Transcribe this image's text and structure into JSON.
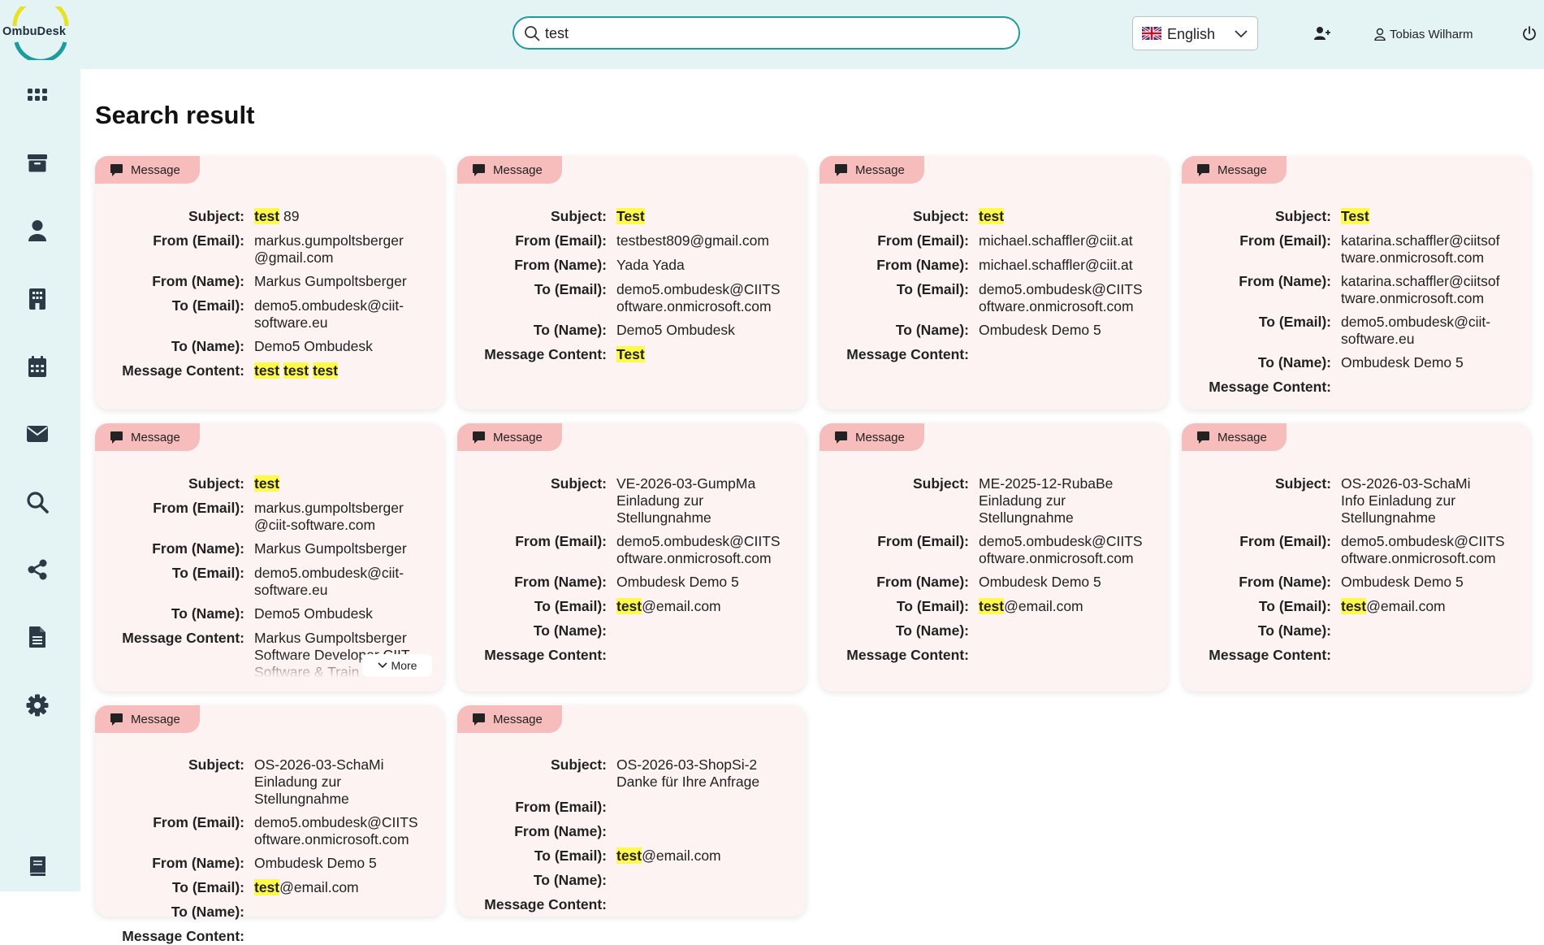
{
  "brand": {
    "name": "OmbuDesk"
  },
  "search": {
    "value": "test",
    "placeholder": ""
  },
  "language": {
    "selected": "English"
  },
  "user": {
    "name": "Tobias Wilharm"
  },
  "page": {
    "title": "Search result"
  },
  "nav": [
    {
      "name": "dashboard-grid-icon"
    },
    {
      "name": "archive-box-icon"
    },
    {
      "name": "person-icon"
    },
    {
      "name": "building-icon"
    },
    {
      "name": "calendar-icon"
    },
    {
      "name": "envelope-icon"
    },
    {
      "name": "search-icon"
    },
    {
      "name": "share-icon"
    },
    {
      "name": "document-icon"
    },
    {
      "name": "gear-icon"
    },
    {
      "name": "book-icon"
    }
  ],
  "field_labels": {
    "subject": "Subject:",
    "from_email": "From (Email):",
    "from_name": "From (Name):",
    "to_email": "To (Email):",
    "to_name": "To (Name):",
    "content": "Message Content:"
  },
  "results": [
    {
      "type": "Message",
      "subject": [
        {
          "t": "test",
          "h": true
        },
        {
          "t": " 89"
        }
      ],
      "from_email": [
        {
          "t": "markus.gumpoltsberger\n@gmail.com"
        }
      ],
      "from_name": [
        {
          "t": "Markus Gumpoltsberger"
        }
      ],
      "to_email": [
        {
          "t": "demo5.ombudesk@ciit-\nsoftware.eu"
        }
      ],
      "to_name": [
        {
          "t": "Demo5 Ombudesk"
        }
      ],
      "content": [
        {
          "t": "test",
          "h": true
        },
        {
          "t": " "
        },
        {
          "t": "test",
          "h": true
        },
        {
          "t": " "
        },
        {
          "t": "test",
          "h": true
        }
      ]
    },
    {
      "type": "Message",
      "subject": [
        {
          "t": "Test",
          "h": true
        }
      ],
      "from_email": [
        {
          "t": "testbest809@gmail.com"
        }
      ],
      "from_name": [
        {
          "t": "Yada Yada"
        }
      ],
      "to_email": [
        {
          "t": "demo5.ombudesk@CIITS\noftware.onmicrosoft.com"
        }
      ],
      "to_name": [
        {
          "t": "Demo5 Ombudesk"
        }
      ],
      "content": [
        {
          "t": "Test",
          "h": true
        }
      ]
    },
    {
      "type": "Message",
      "subject": [
        {
          "t": "test",
          "h": true
        }
      ],
      "from_email": [
        {
          "t": "michael.schaffler@ciit.at"
        }
      ],
      "from_name": [
        {
          "t": "michael.schaffler@ciit.at"
        }
      ],
      "to_email": [
        {
          "t": "demo5.ombudesk@CIITS\noftware.onmicrosoft.com"
        }
      ],
      "to_name": [
        {
          "t": "Ombudesk Demo 5"
        }
      ],
      "content": []
    },
    {
      "type": "Message",
      "subject": [
        {
          "t": "Test",
          "h": true
        }
      ],
      "from_email": [
        {
          "t": "katarina.schaffler@ciitsof\ntware.onmicrosoft.com"
        }
      ],
      "from_name": [
        {
          "t": "katarina.schaffler@ciitsof\ntware.onmicrosoft.com"
        }
      ],
      "to_email": [
        {
          "t": "demo5.ombudesk@ciit-\nsoftware.eu"
        }
      ],
      "to_name": [
        {
          "t": "Ombudesk Demo 5"
        }
      ],
      "content": []
    },
    {
      "type": "Message",
      "subject": [
        {
          "t": "test",
          "h": true
        }
      ],
      "from_email": [
        {
          "t": "markus.gumpoltsberger\n@ciit-software.com"
        }
      ],
      "from_name": [
        {
          "t": "Markus Gumpoltsberger"
        }
      ],
      "to_email": [
        {
          "t": "demo5.ombudesk@ciit-\nsoftware.eu"
        }
      ],
      "to_name": [
        {
          "t": "Demo5 Ombudesk"
        }
      ],
      "content": [
        {
          "t": "Markus Gumpoltsberger\nSoftware Developer CIIT\nSoftware & Train"
        }
      ],
      "more_label": "More"
    },
    {
      "type": "Message",
      "subject": [
        {
          "t": "VE-2026-03-GumpMa\nEinladung zur\nStellungnahme"
        }
      ],
      "from_email": [
        {
          "t": "demo5.ombudesk@CIITS\noftware.onmicrosoft.com"
        }
      ],
      "from_name": [
        {
          "t": "Ombudesk Demo 5"
        }
      ],
      "to_email": [
        {
          "t": "test",
          "h": true
        },
        {
          "t": "@email.com"
        }
      ],
      "to_name": [],
      "content": []
    },
    {
      "type": "Message",
      "subject": [
        {
          "t": "ME-2025-12-RubaBe\nEinladung zur\nStellungnahme"
        }
      ],
      "from_email": [
        {
          "t": "demo5.ombudesk@CIITS\noftware.onmicrosoft.com"
        }
      ],
      "from_name": [
        {
          "t": "Ombudesk Demo 5"
        }
      ],
      "to_email": [
        {
          "t": "test",
          "h": true
        },
        {
          "t": "@email.com"
        }
      ],
      "to_name": [],
      "content": []
    },
    {
      "type": "Message",
      "subject": [
        {
          "t": "OS-2026-03-SchaMi\nInfo Einladung zur\nStellungnahme"
        }
      ],
      "from_email": [
        {
          "t": "demo5.ombudesk@CIITS\noftware.onmicrosoft.com"
        }
      ],
      "from_name": [
        {
          "t": "Ombudesk Demo 5"
        }
      ],
      "to_email": [
        {
          "t": "test",
          "h": true
        },
        {
          "t": "@email.com"
        }
      ],
      "to_name": [],
      "content": []
    },
    {
      "type": "Message",
      "subject": [
        {
          "t": "OS-2026-03-SchaMi\nEinladung zur\nStellungnahme"
        }
      ],
      "from_email": [
        {
          "t": "demo5.ombudesk@CIITS\noftware.onmicrosoft.com"
        }
      ],
      "from_name": [
        {
          "t": "Ombudesk Demo 5"
        }
      ],
      "to_email": [
        {
          "t": "test",
          "h": true
        },
        {
          "t": "@email.com"
        }
      ],
      "to_name": [],
      "content": []
    },
    {
      "type": "Message",
      "subject": [
        {
          "t": "OS-2026-03-ShopSi-2\nDanke für Ihre Anfrage"
        }
      ],
      "from_email": [],
      "from_name": [],
      "to_email": [
        {
          "t": "test",
          "h": true
        },
        {
          "t": "@email.com"
        }
      ],
      "to_name": [],
      "content": []
    }
  ]
}
